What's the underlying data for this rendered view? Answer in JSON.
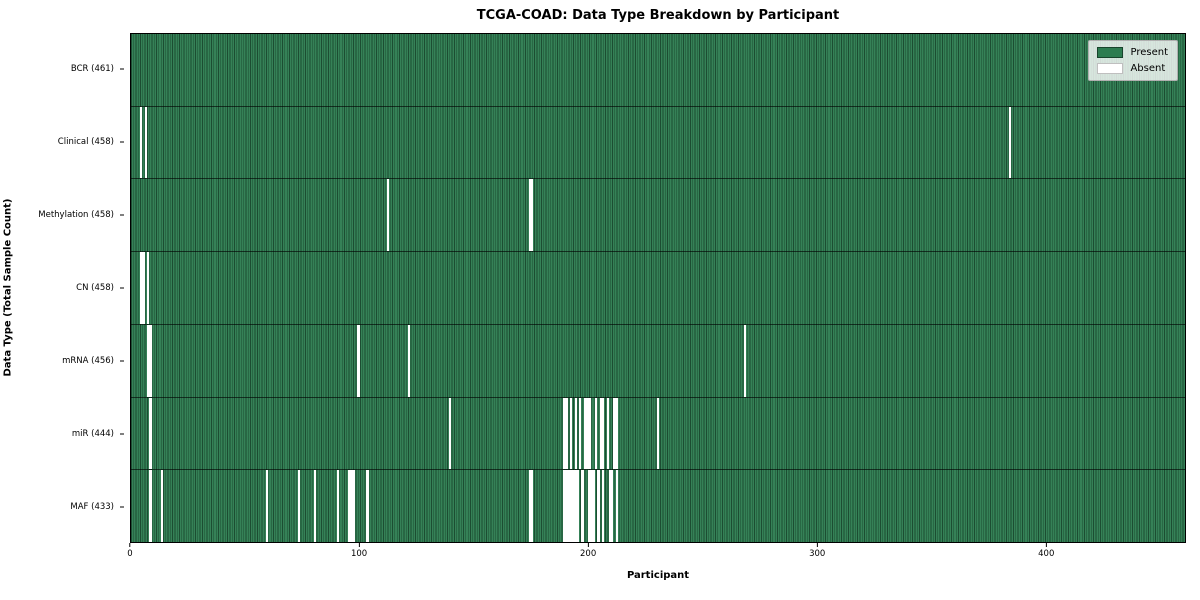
{
  "title": "TCGA-COAD: Data Type Breakdown by Participant",
  "xlabel": "Participant",
  "ylabel": "Data Type (Total Sample Count)",
  "legend": {
    "present_label": "Present",
    "absent_label": "Absent"
  },
  "colors": {
    "present": "#2d7c50",
    "absent": "#ffffff",
    "cell_edge": "#1c4630",
    "axis": "#000000"
  },
  "chart_data": {
    "type": "heatmap",
    "title": "TCGA-COAD: Data Type Breakdown by Participant",
    "xlabel": "Participant",
    "ylabel": "Data Type (Total Sample Count)",
    "total_participants": 461,
    "x_ticks": [
      0,
      100,
      200,
      300,
      400
    ],
    "legend_position": "upper right",
    "legend_entries": [
      "Present",
      "Absent"
    ],
    "rows": [
      {
        "name": "BCR",
        "label": "BCR (461)",
        "count": 461,
        "absent_participants": []
      },
      {
        "name": "Clinical",
        "label": "Clinical (458)",
        "count": 458,
        "absent_participants": [
          4,
          6,
          384
        ]
      },
      {
        "name": "Methylation",
        "label": "Methylation (458)",
        "count": 458,
        "absent_participants": [
          112,
          174,
          175
        ]
      },
      {
        "name": "CN",
        "label": "CN (458)",
        "count": 458,
        "absent_participants": [
          4,
          5,
          7
        ]
      },
      {
        "name": "mRNA",
        "label": "mRNA (456)",
        "count": 456,
        "absent_participants": [
          7,
          8,
          99,
          121,
          268
        ]
      },
      {
        "name": "miR",
        "label": "miR (444)",
        "count": 444,
        "absent_participants": [
          8,
          139,
          189,
          190,
          192,
          194,
          196,
          198,
          199,
          200,
          203,
          205,
          206,
          208,
          211,
          212,
          230
        ]
      },
      {
        "name": "MAF",
        "label": "MAF (433)",
        "count": 433,
        "absent_participants": [
          8,
          13,
          59,
          73,
          80,
          90,
          95,
          96,
          97,
          103,
          174,
          175,
          189,
          190,
          191,
          192,
          193,
          194,
          195,
          197,
          200,
          201,
          202,
          204,
          206,
          209,
          210,
          212
        ]
      }
    ]
  }
}
